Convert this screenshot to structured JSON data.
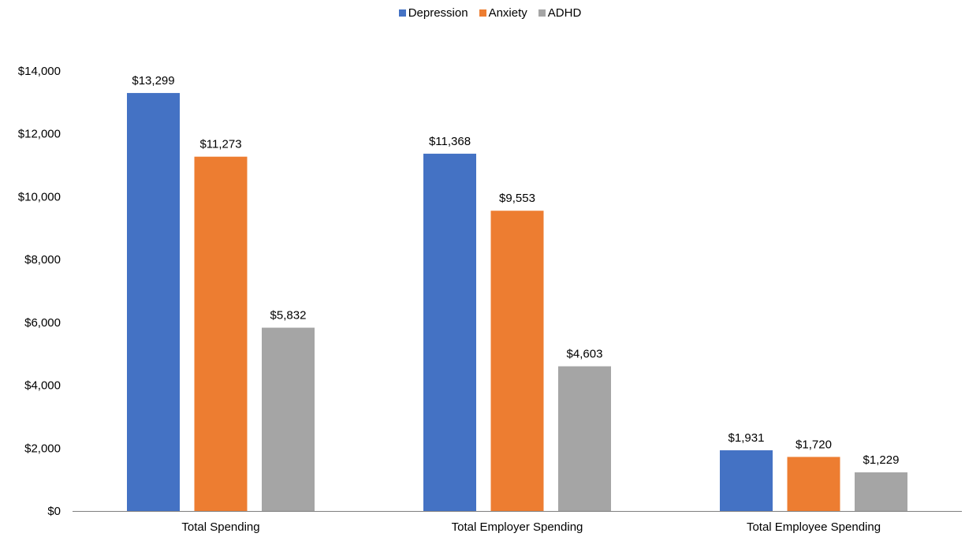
{
  "chart_data": {
    "type": "bar",
    "categories": [
      "Total Spending",
      "Total Employer Spending",
      "Total Employee Spending"
    ],
    "series": [
      {
        "name": "Depression",
        "color": "#4472C4",
        "values": [
          13299,
          11368,
          1931
        ],
        "labels": [
          "$13,299",
          "$11,368",
          "$1,931"
        ]
      },
      {
        "name": "Anxiety",
        "color": "#ED7D31",
        "values": [
          11273,
          9553,
          1720
        ],
        "labels": [
          "$11,273",
          "$9,553",
          "$1,720"
        ]
      },
      {
        "name": "ADHD",
        "color": "#A5A5A5",
        "values": [
          5832,
          4603,
          1229
        ],
        "labels": [
          "$5,832",
          "$4,603",
          "$1,229"
        ]
      }
    ],
    "ylim": [
      0,
      14000
    ],
    "yticks": [
      0,
      2000,
      4000,
      6000,
      8000,
      10000,
      12000,
      14000
    ],
    "ytick_labels": [
      "$0",
      "$2,000",
      "$4,000",
      "$6,000",
      "$8,000",
      "$10,000",
      "$12,000",
      "$14,000"
    ],
    "legend_position": "top-center",
    "grid": false,
    "title": "",
    "xlabel": "",
    "ylabel": ""
  }
}
